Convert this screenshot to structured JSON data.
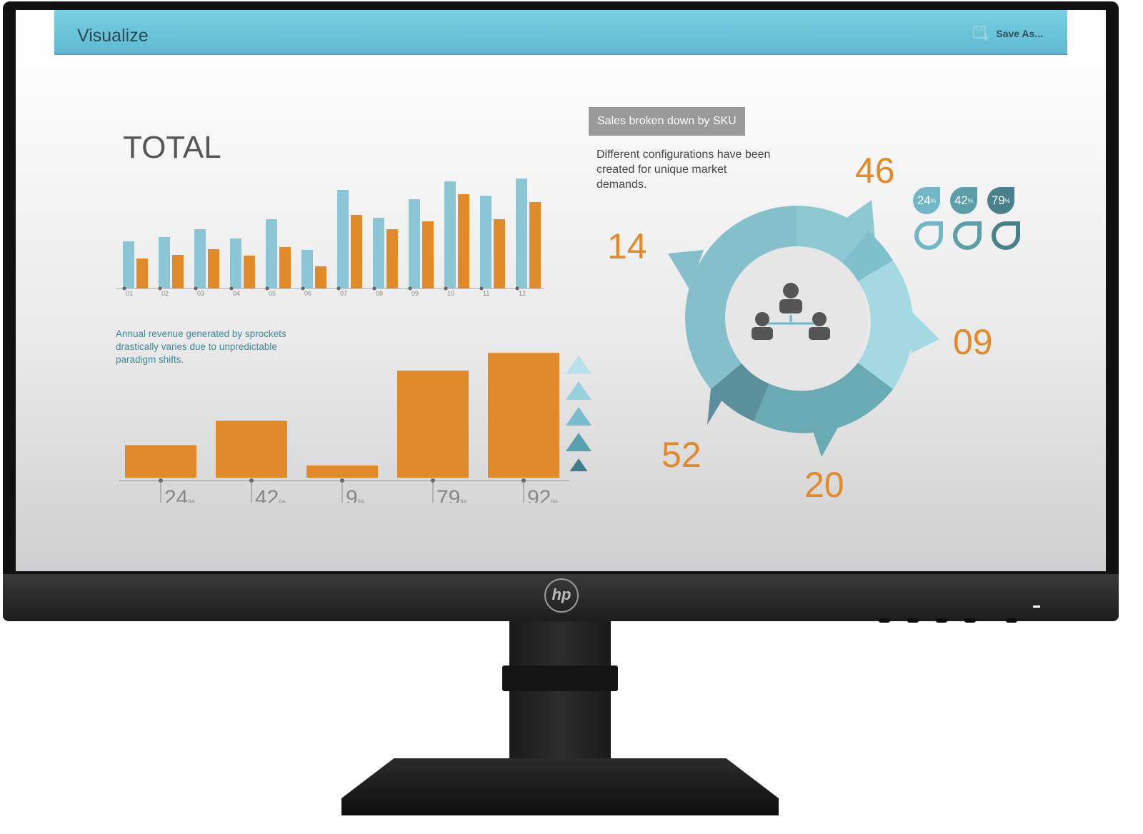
{
  "header": {
    "title": "Visualize",
    "save_label": "Save As...",
    "save_icon": "floppy-save-icon",
    "color": "#6cc5db"
  },
  "left": {
    "title": "TOTAL",
    "monthly_chart": {
      "type": "bar",
      "categories": [
        "01",
        "02",
        "03",
        "04",
        "05",
        "06",
        "07",
        "08",
        "09",
        "10",
        "11",
        "12"
      ],
      "series": [
        {
          "values": [
            66,
            72,
            83,
            70,
            97,
            54,
            138,
            99,
            125,
            150,
            130,
            154
          ],
          "color": "#8cc6d6"
        },
        {
          "values": [
            42,
            47,
            55,
            46,
            58,
            31,
            103,
            83,
            94,
            132,
            97,
            121
          ],
          "color": "#e08a2c"
        }
      ]
    },
    "description": "Annual revenue generated by sprockets drastically varies due to unpredictable paradigm shifts.",
    "percent_chart": {
      "type": "bar",
      "values": [
        24,
        42,
        9,
        79,
        92
      ],
      "labels": [
        "24",
        "42",
        "9",
        "79",
        "92"
      ],
      "unit": "%",
      "color": "#e08a2c"
    },
    "triangle_colors": [
      "#b7e0ea",
      "#98d0de",
      "#78bccd",
      "#5a9fae",
      "#3f7d8c"
    ]
  },
  "right": {
    "badge": "Sales broken down by SKU",
    "description": "Different configurations have been created for unique market demands.",
    "numbers": [
      "46",
      "14",
      "09",
      "52",
      "20"
    ],
    "center_icon": "team-hierarchy-icon",
    "drops": [
      {
        "label": "24",
        "unit": "%",
        "color": "#72b6c8"
      },
      {
        "label": "42",
        "unit": "%",
        "color": "#5e9ea8"
      },
      {
        "label": "79",
        "unit": "%",
        "color": "#4a7f8c"
      }
    ]
  },
  "monitor": {
    "brand": "hp"
  }
}
